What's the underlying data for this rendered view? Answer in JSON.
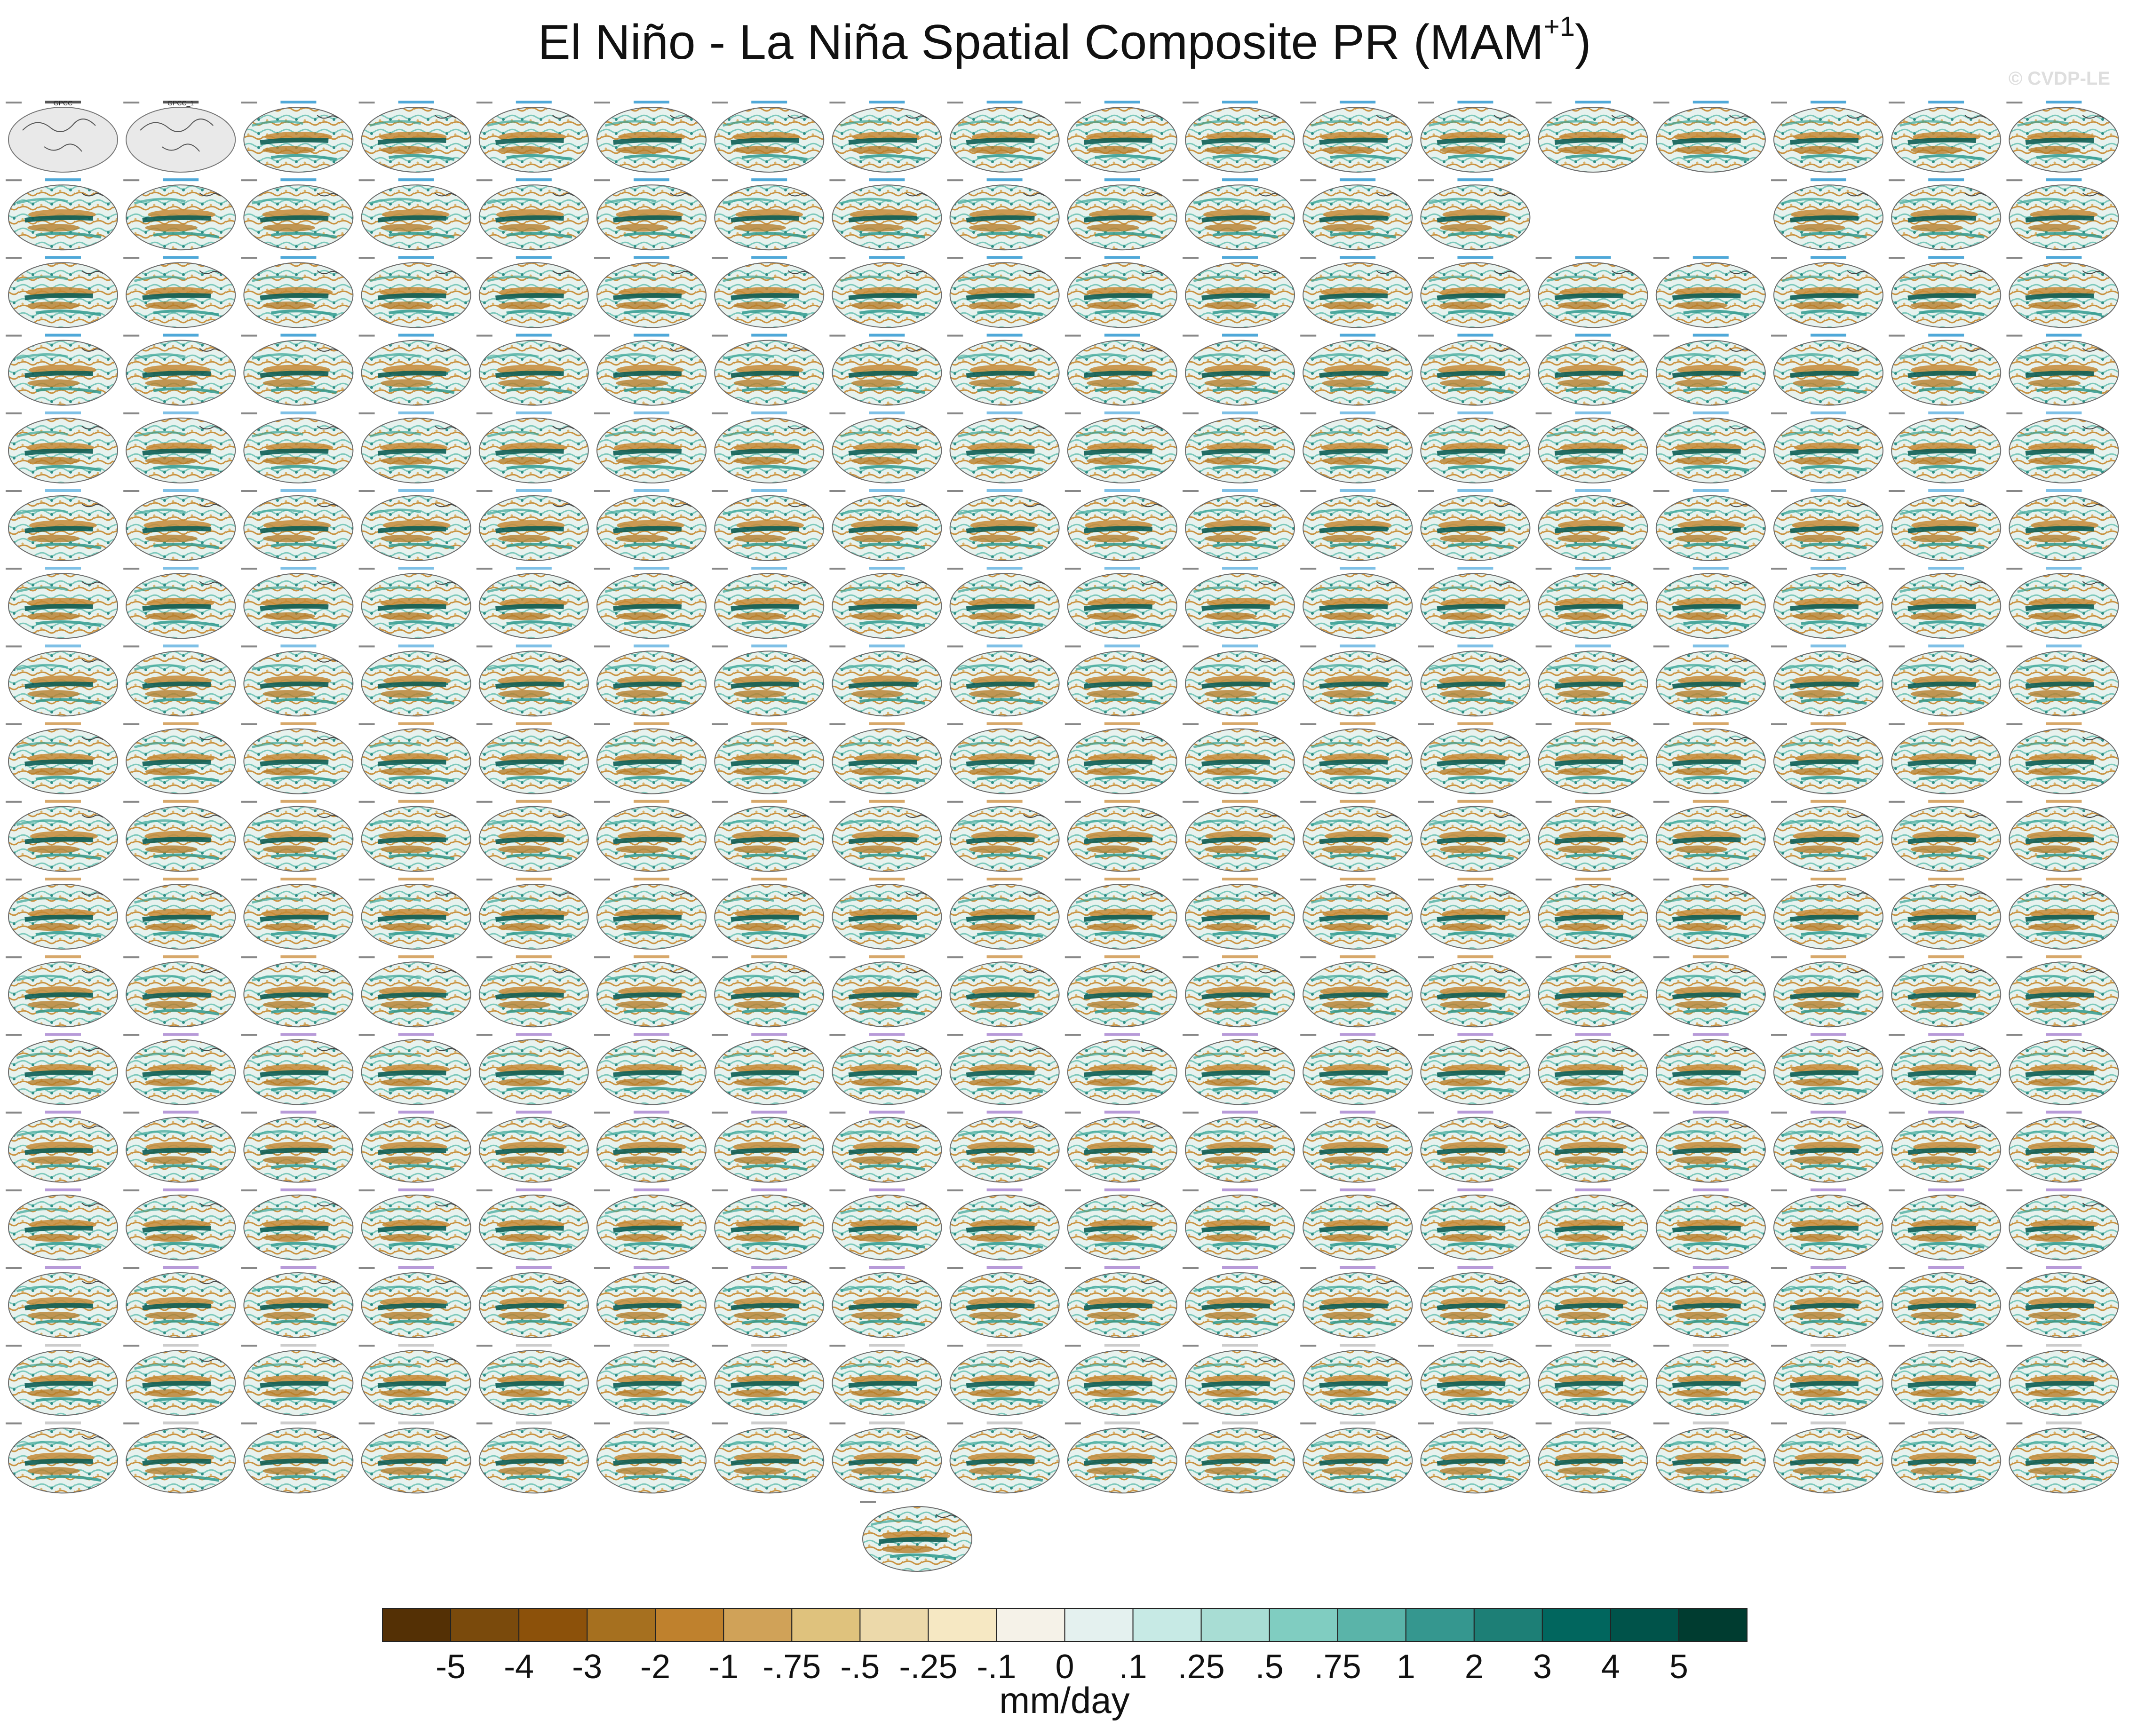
{
  "title_main": "El Niño - La Niña Spatial Composite PR (MAM",
  "title_sup": "+1",
  "title_close": ")",
  "watermark": "© CVDP-LE",
  "panels": {
    "rows": 18,
    "cols": 18,
    "missing": [
      [
        1,
        13
      ],
      [
        1,
        14
      ]
    ],
    "row0_labels": [
      "GPCC",
      "GPCC_1"
    ],
    "observation_fill": "#e9e9e9"
  },
  "chart_data": {
    "type": "heatmap",
    "title": "El Niño - La Niña Spatial Composite PR (MAM+1)",
    "colorbar": {
      "label": "mm/day",
      "tick_labels": [
        "-5",
        "-4",
        "-3",
        "-2",
        "-1",
        "-.75",
        "-.5",
        "-.25",
        "-.1",
        "0",
        ".1",
        ".25",
        ".5",
        ".75",
        "1",
        "2",
        "3",
        "4",
        "5"
      ],
      "colors": [
        "#543005",
        "#7a4a0c",
        "#8c510a",
        "#a6701f",
        "#bf812d",
        "#d0a258",
        "#dfc27d",
        "#ecd9aa",
        "#f6e8c3",
        "#f5f2e8",
        "#e4f1ef",
        "#c7eae5",
        "#a8ddd4",
        "#80cdc1",
        "#5ab4a9",
        "#35978f",
        "#1d7f76",
        "#01665e",
        "#00534a",
        "#003c30"
      ]
    }
  }
}
